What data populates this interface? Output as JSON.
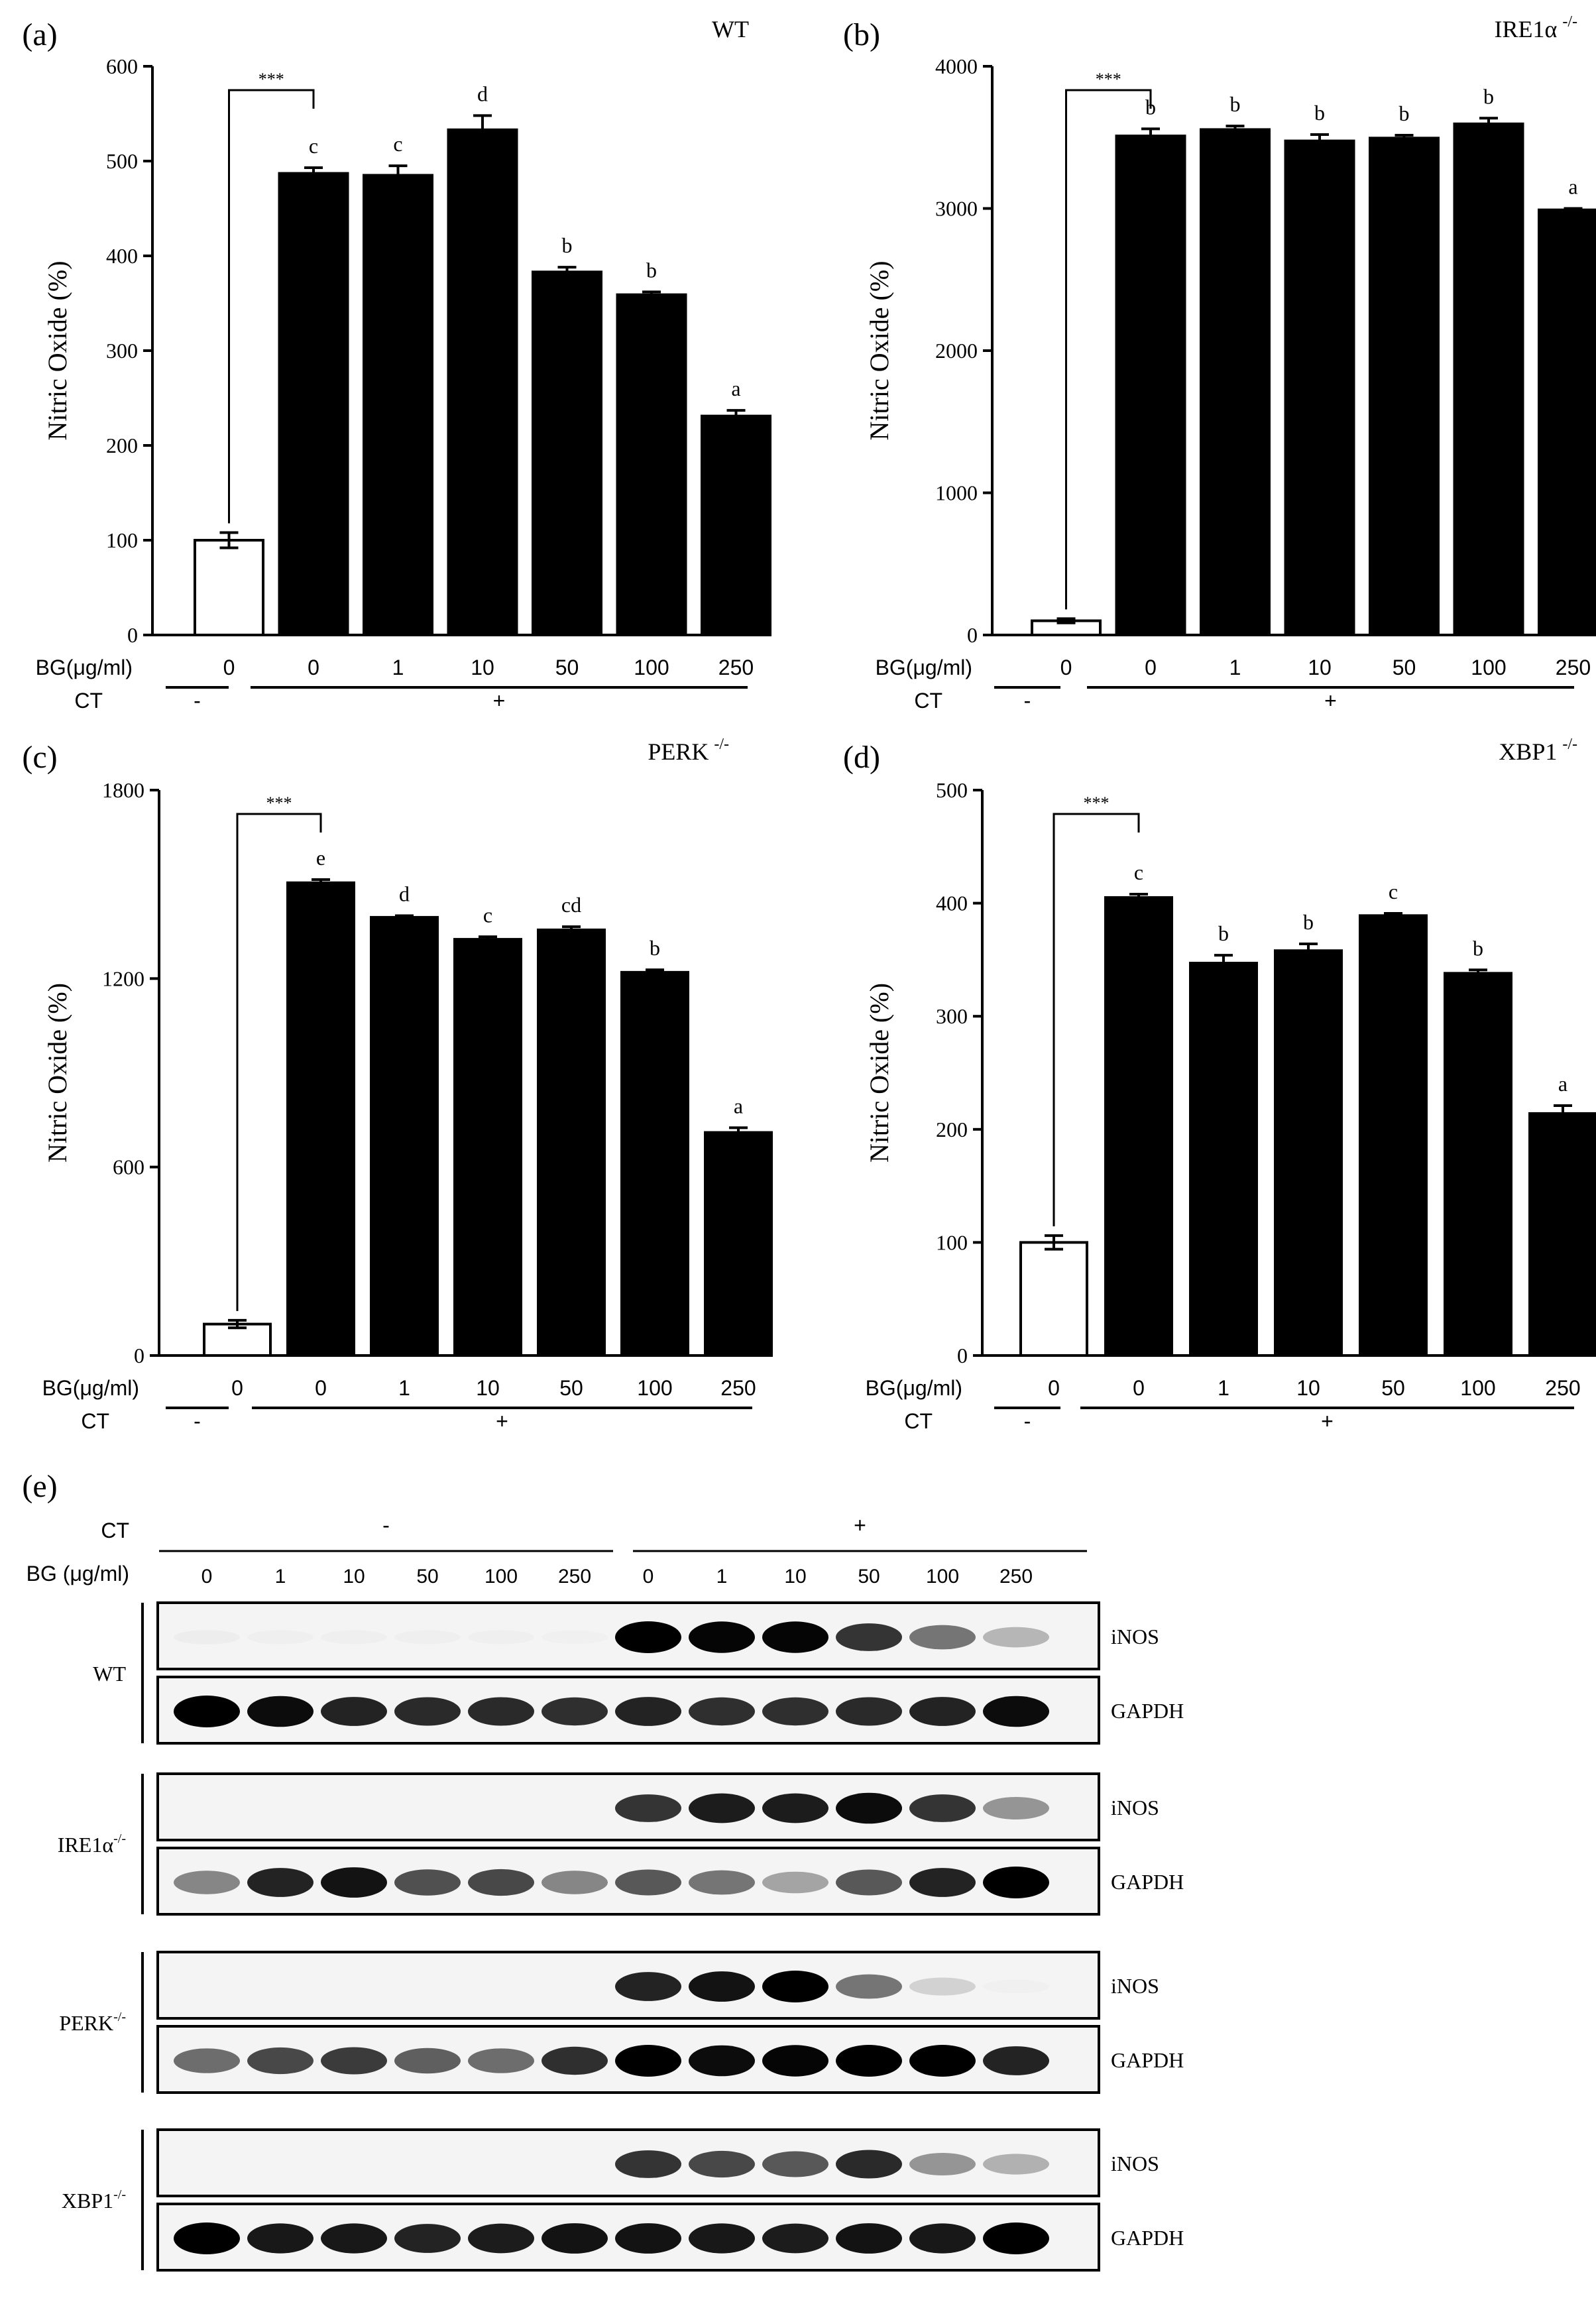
{
  "figure": {
    "axis_label": "Nitric Oxide (%)",
    "row_labels": {
      "bg": "BG(μg/ml)",
      "ct": "CT"
    },
    "significance": "***"
  },
  "chart_data": [
    {
      "panel_label": "(a)",
      "title": "WT",
      "type": "bar",
      "categories": [
        "0",
        "0",
        "1",
        "10",
        "50",
        "100",
        "250"
      ],
      "ct": [
        "-",
        "+"
      ],
      "values": [
        100,
        487,
        485,
        533,
        383,
        359,
        231
      ],
      "errors": [
        8,
        6,
        10,
        15,
        5,
        3,
        6
      ],
      "letters": [
        "",
        "c",
        "c",
        "d",
        "b",
        "b",
        "a"
      ],
      "fills": [
        "#ffffff",
        "#000000",
        "#000000",
        "#000000",
        "#000000",
        "#000000",
        "#000000"
      ],
      "ylabel": "Nitric Oxide (%)",
      "ylim": [
        0,
        600
      ],
      "yticks": [
        0,
        100,
        200,
        300,
        400,
        500,
        600
      ]
    },
    {
      "panel_label": "(b)",
      "title": "IRE1α",
      "title_sup": "-/-",
      "type": "bar",
      "categories": [
        "0",
        "0",
        "1",
        "10",
        "50",
        "100",
        "250"
      ],
      "ct": [
        "-",
        "+"
      ],
      "values": [
        100,
        3510,
        3555,
        3475,
        3495,
        3595,
        2990
      ],
      "errors": [
        15,
        50,
        25,
        45,
        20,
        40,
        10
      ],
      "letters": [
        "",
        "b",
        "b",
        "b",
        "b",
        "b",
        "a"
      ],
      "fills": [
        "#ffffff",
        "#000000",
        "#000000",
        "#000000",
        "#000000",
        "#000000",
        "#000000"
      ],
      "ylabel": "Nitric Oxide (%)",
      "ylim": [
        0,
        4000
      ],
      "yticks": [
        0,
        1000,
        2000,
        3000,
        4000
      ]
    },
    {
      "panel_label": "(c)",
      "title": "PERK",
      "title_sup": "-/-",
      "type": "bar",
      "categories": [
        "0",
        "0",
        "1",
        "10",
        "50",
        "100",
        "250"
      ],
      "ct": [
        "-",
        "+"
      ],
      "values": [
        100,
        1505,
        1395,
        1325,
        1355,
        1220,
        710
      ],
      "errors": [
        12,
        10,
        5,
        8,
        10,
        8,
        15
      ],
      "letters": [
        "",
        "e",
        "d",
        "c",
        "cd",
        "b",
        "a"
      ],
      "fills": [
        "#ffffff",
        "#000000",
        "#000000",
        "#000000",
        "#000000",
        "#000000",
        "#000000"
      ],
      "ylabel": "Nitric Oxide (%)",
      "ylim": [
        0,
        1800
      ],
      "yticks": [
        0,
        600,
        1200,
        1800
      ]
    },
    {
      "panel_label": "(d)",
      "title": "XBP1",
      "title_sup": "-/-",
      "type": "bar",
      "categories": [
        "0",
        "0",
        "1",
        "10",
        "50",
        "100",
        "250"
      ],
      "ct": [
        "-",
        "+"
      ],
      "values": [
        100,
        405,
        347,
        358,
        389,
        338,
        214
      ],
      "errors": [
        6,
        3,
        7,
        6,
        2,
        3,
        7
      ],
      "letters": [
        "",
        "c",
        "b",
        "b",
        "c",
        "b",
        "a"
      ],
      "fills": [
        "#ffffff",
        "#000000",
        "#000000",
        "#000000",
        "#000000",
        "#000000",
        "#000000"
      ],
      "ylabel": "Nitric Oxide (%)",
      "ylim": [
        0,
        500
      ],
      "yticks": [
        0,
        100,
        200,
        300,
        400,
        500
      ]
    }
  ],
  "blot": {
    "panel_label": "(e)",
    "ct_label": "CT",
    "bg_label": "BG (μg/ml)",
    "ct_values": [
      "-",
      "+"
    ],
    "lanes": [
      "0",
      "1",
      "10",
      "50",
      "100",
      "250",
      "0",
      "1",
      "10",
      "50",
      "100",
      "250"
    ],
    "groups": [
      {
        "label": "WT",
        "sup": "",
        "bands": [
          {
            "name": "iNOS",
            "intensity": [
              0.05,
              0.04,
              0.03,
              0.03,
              0.03,
              0.02,
              1.0,
              0.98,
              0.98,
              0.78,
              0.6,
              0.38
            ]
          },
          {
            "name": "GAPDH",
            "intensity": [
              1.0,
              0.95,
              0.85,
              0.82,
              0.82,
              0.8,
              0.85,
              0.8,
              0.8,
              0.82,
              0.85,
              0.95
            ]
          }
        ]
      },
      {
        "label": "IRE1α",
        "sup": "-/-",
        "bands": [
          {
            "name": "iNOS",
            "intensity": [
              0,
              0,
              0,
              0,
              0,
              0,
              0.78,
              0.88,
              0.88,
              0.95,
              0.78,
              0.5
            ]
          },
          {
            "name": "GAPDH",
            "intensity": [
              0.55,
              0.85,
              0.92,
              0.7,
              0.72,
              0.55,
              0.68,
              0.6,
              0.45,
              0.68,
              0.85,
              1.0
            ]
          }
        ]
      },
      {
        "label": "PERK",
        "sup": "-/-",
        "bands": [
          {
            "name": "iNOS",
            "intensity": [
              0,
              0,
              0,
              0,
              0,
              0,
              0.85,
              0.92,
              1.0,
              0.6,
              0.25,
              0.02
            ]
          },
          {
            "name": "GAPDH",
            "intensity": [
              0.62,
              0.72,
              0.75,
              0.66,
              0.62,
              0.8,
              1.0,
              0.95,
              0.98,
              1.0,
              1.0,
              0.85
            ]
          }
        ]
      },
      {
        "label": "XBP1",
        "sup": "-/-",
        "bands": [
          {
            "name": "iNOS",
            "intensity": [
              0,
              0,
              0,
              0,
              0,
              0,
              0.78,
              0.72,
              0.68,
              0.82,
              0.5,
              0.4
            ]
          },
          {
            "name": "GAPDH",
            "intensity": [
              1.0,
              0.9,
              0.9,
              0.85,
              0.88,
              0.92,
              0.92,
              0.9,
              0.88,
              0.92,
              0.9,
              1.0
            ]
          }
        ]
      }
    ]
  }
}
